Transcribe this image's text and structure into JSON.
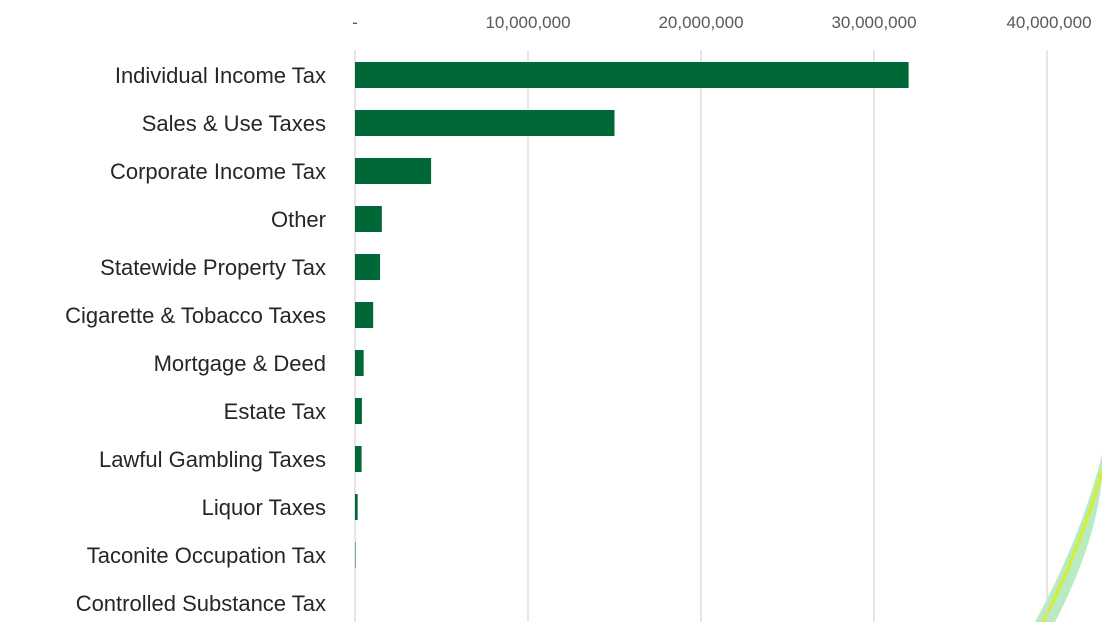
{
  "chart_data": {
    "type": "bar",
    "orientation": "horizontal",
    "title": "",
    "xlabel": "",
    "ylabel": "",
    "categories": [
      "Individual Income Tax",
      "Sales & Use Taxes",
      "Corporate Income Tax",
      "Other",
      "Statewide Property Tax",
      "Cigarette & Tobacco Taxes",
      "Mortgage & Deed",
      "Estate Tax",
      "Lawful Gambling Taxes",
      "Liquor Taxes",
      "Taconite Occupation Tax",
      "Controlled Substance Tax"
    ],
    "values": [
      32000000,
      15000000,
      4400000,
      1550000,
      1450000,
      1050000,
      500000,
      400000,
      380000,
      150000,
      30000,
      0
    ],
    "xlim": [
      0,
      40000000
    ],
    "x_ticks": [
      0,
      10000000,
      20000000,
      30000000,
      40000000
    ],
    "x_tick_labels": [
      "-",
      "10,000,000",
      "20,000,000",
      "30,000,000",
      "40,000,000"
    ],
    "x_axis_position": "top",
    "grid": true,
    "legend": "none",
    "colors": {
      "bar": "#006837",
      "grid": "#d9d9d9",
      "tick_text": "#595959",
      "label_text": "#262626",
      "accent_swoosh": "#d9ee2a",
      "accent_glow": "#a8e6b4"
    }
  }
}
